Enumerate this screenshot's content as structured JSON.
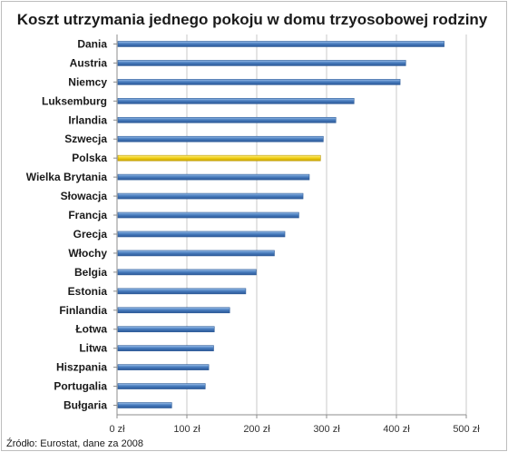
{
  "chart_data": {
    "type": "bar",
    "orientation": "horizontal",
    "title": "Koszt utrzymania jednego pokoju w domu trzyosobowej rodziny",
    "source": "Źródło: Eurostat, dane za 2008",
    "categories": [
      "Dania",
      "Austria",
      "Niemcy",
      "Luksemburg",
      "Irlandia",
      "Szwecja",
      "Polska",
      "Wielka Brytania",
      "Słowacja",
      "Francja",
      "Grecja",
      "Włochy",
      "Belgia",
      "Estonia",
      "Finlandia",
      "Łotwa",
      "Litwa",
      "Hiszpania",
      "Portugalia",
      "Bułgaria"
    ],
    "values": [
      467,
      412,
      404,
      338,
      312,
      294,
      290,
      274,
      265,
      259,
      239,
      224,
      198,
      183,
      160,
      138,
      137,
      130,
      125,
      77
    ],
    "highlight": "Polska",
    "xlim": [
      0,
      500
    ],
    "ticks": [
      0,
      100,
      200,
      300,
      400,
      500
    ],
    "tick_labels": [
      "0 zł",
      "100 zł",
      "200 zł",
      "300 zł",
      "400 zł",
      "500 zł"
    ],
    "grid": true,
    "colors": {
      "bar": "#4a7ebf",
      "highlight": "#f2d117",
      "grid": "#c8c8c8"
    }
  }
}
